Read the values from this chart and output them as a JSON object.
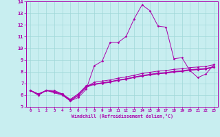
{
  "xlabel": "Windchill (Refroidissement éolien,°C)",
  "xlim": [
    -0.5,
    23.5
  ],
  "ylim": [
    5,
    14
  ],
  "xticks": [
    0,
    1,
    2,
    3,
    4,
    5,
    6,
    7,
    8,
    9,
    10,
    11,
    12,
    13,
    14,
    15,
    16,
    17,
    18,
    19,
    20,
    21,
    22,
    23
  ],
  "yticks": [
    5,
    6,
    7,
    8,
    9,
    10,
    11,
    12,
    13,
    14
  ],
  "bg_color": "#c8eef0",
  "line_color": "#aa00aa",
  "grid_color": "#a0d8d8",
  "xaxis_bar_color": "#880088",
  "lines": [
    [
      6.4,
      6.0,
      6.4,
      6.4,
      6.1,
      5.5,
      5.8,
      6.5,
      8.5,
      8.9,
      10.5,
      10.5,
      11.0,
      12.5,
      13.7,
      13.2,
      11.9,
      11.8,
      9.1,
      9.2,
      8.1,
      7.5,
      7.8,
      8.6
    ],
    [
      6.4,
      6.0,
      6.4,
      6.2,
      6.0,
      5.5,
      6.0,
      6.7,
      7.1,
      7.2,
      7.3,
      7.45,
      7.55,
      7.7,
      7.85,
      7.95,
      8.05,
      8.1,
      8.2,
      8.25,
      8.35,
      8.4,
      8.45,
      8.6
    ],
    [
      6.4,
      6.1,
      6.4,
      6.25,
      6.05,
      5.55,
      5.95,
      6.65,
      6.95,
      7.05,
      7.15,
      7.3,
      7.4,
      7.55,
      7.68,
      7.78,
      7.88,
      7.93,
      8.03,
      8.08,
      8.18,
      8.23,
      8.28,
      8.43
    ],
    [
      6.4,
      6.1,
      6.4,
      6.3,
      6.1,
      5.6,
      6.1,
      6.75,
      6.9,
      7.0,
      7.1,
      7.25,
      7.35,
      7.5,
      7.62,
      7.72,
      7.82,
      7.87,
      7.97,
      8.02,
      8.12,
      8.17,
      8.22,
      8.37
    ],
    [
      6.4,
      6.1,
      6.4,
      6.3,
      6.1,
      5.65,
      6.1,
      6.8,
      6.95,
      7.05,
      7.15,
      7.28,
      7.38,
      7.52,
      7.65,
      7.75,
      7.85,
      7.9,
      8.0,
      8.05,
      8.15,
      8.2,
      8.25,
      8.4
    ]
  ]
}
